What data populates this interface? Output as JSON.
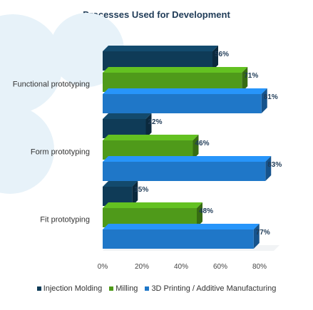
{
  "chart_data": {
    "type": "bar",
    "orientation": "horizontal",
    "title": "Processes Used for Development",
    "categories": [
      "Functional prototyping",
      "Form prototyping",
      "Fit prototyping"
    ],
    "series": [
      {
        "name": "Injection Molding",
        "values": [
          56,
          22,
          15
        ],
        "color": "#0f3b57"
      },
      {
        "name": "Milling",
        "values": [
          71,
          46,
          48
        ],
        "color": "#4f9a1a"
      },
      {
        "name": "3D Printing / Additive Manufacturing",
        "values": [
          81,
          83,
          77
        ],
        "color": "#1f77c8"
      }
    ],
    "value_labels": [
      [
        "56%",
        "71%",
        "81%"
      ],
      [
        "22%",
        "46%",
        "83%"
      ],
      [
        "15%",
        "48%",
        "77%"
      ]
    ],
    "xticks": [
      "0%",
      "20%",
      "40%",
      "60%",
      "80%"
    ],
    "xlim": [
      0,
      80
    ],
    "xlabel": "",
    "ylabel": "",
    "legend_position": "bottom",
    "grid": false
  }
}
